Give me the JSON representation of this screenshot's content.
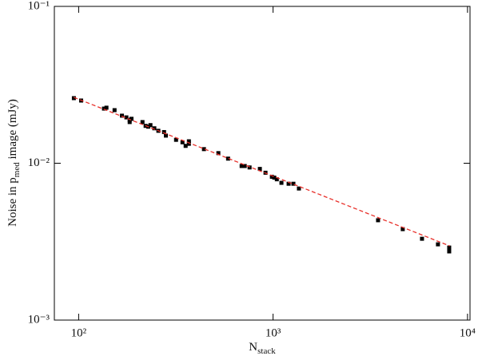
{
  "chart_data": {
    "type": "scatter",
    "xlabel": [
      "N",
      "stack"
    ],
    "ylabel": [
      "Noise in p",
      "med",
      " image (mJy)"
    ],
    "xscale": "log",
    "yscale": "log",
    "xlim": [
      75,
      10300
    ],
    "ylim": [
      0.001,
      0.1
    ],
    "xticks": [
      {
        "value": 100,
        "label": "10²"
      },
      {
        "value": 1000,
        "label": "10³"
      },
      {
        "value": 10000,
        "label": "10⁴"
      }
    ],
    "yticks": [
      {
        "value": 0.001,
        "label": "10⁻³"
      },
      {
        "value": 0.01,
        "label": "10⁻²"
      },
      {
        "value": 0.1,
        "label": "10⁻¹"
      }
    ],
    "series": [
      {
        "color": "#000000",
        "x": [
          94.5,
          103,
          135,
          139,
          153,
          167,
          176,
          183,
          187,
          183,
          213,
          221,
          228,
          234,
          245,
          257,
          275,
          281,
          317,
          342,
          355,
          369,
          369,
          441,
          523,
          587,
          689,
          715,
          757,
          855,
          914,
          986,
          1014,
          1045,
          1104,
          1202,
          1272,
          1358,
          3467,
          4645,
          5834,
          7047,
          8050,
          8050
        ],
        "values": [
          0.026,
          0.0251,
          0.0223,
          0.0226,
          0.0218,
          0.0201,
          0.0196,
          0.0189,
          0.0192,
          0.0183,
          0.0183,
          0.0173,
          0.0171,
          0.0175,
          0.0167,
          0.0161,
          0.0158,
          0.015,
          0.0141,
          0.0136,
          0.0129,
          0.0133,
          0.0138,
          0.0123,
          0.0116,
          0.0107,
          0.0096,
          0.0096,
          0.0094,
          0.0092,
          0.0087,
          0.0082,
          0.0081,
          0.0079,
          0.0075,
          0.0074,
          0.0074,
          0.0069,
          0.00433,
          0.0038,
          0.0033,
          0.00304,
          0.0029,
          0.00274
        ]
      },
      {
        "color": "#e8302a",
        "style": "dashed",
        "x": [
          94.5,
          8100
        ],
        "values": [
          0.0263,
          0.00297
        ]
      }
    ]
  }
}
